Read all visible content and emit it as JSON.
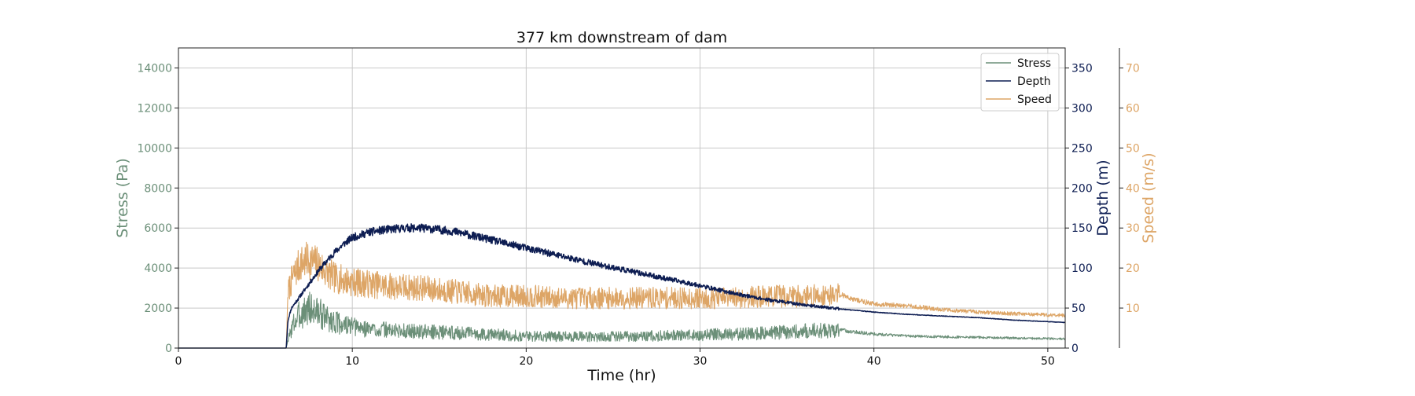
{
  "chart_data": {
    "type": "line",
    "title": "377 km downstream of dam",
    "xlabel": "Time (hr)",
    "xlim": [
      0,
      51
    ],
    "xticks": [
      0,
      10,
      20,
      30,
      40,
      50
    ],
    "grid": true,
    "legend_position": "top-right",
    "colors": {
      "stress": "#6b8f78",
      "depth": "#0d1d52",
      "speed": "#dda566"
    },
    "axes": {
      "stress": {
        "label": "Stress (Pa)",
        "side": "left",
        "ylim": [
          0,
          15000
        ],
        "ticks": [
          0,
          2000,
          4000,
          6000,
          8000,
          10000,
          12000,
          14000
        ]
      },
      "depth": {
        "label": "Depth (m)",
        "side": "right",
        "ylim": [
          0,
          375
        ],
        "ticks": [
          0,
          50,
          100,
          150,
          200,
          250,
          300,
          350
        ]
      },
      "speed": {
        "label": "Speed (m/s)",
        "side": "right-offset",
        "ylim": [
          0,
          75
        ],
        "ticks": [
          10,
          20,
          30,
          40,
          50,
          60,
          70
        ]
      }
    },
    "series": [
      {
        "name": "Stress",
        "axis": "stress",
        "noise": 0.45,
        "x": [
          0,
          6.2,
          6.3,
          6.6,
          7,
          7.5,
          8,
          8.5,
          9,
          10,
          11,
          12,
          13,
          14,
          15,
          16,
          17,
          18,
          19,
          20,
          22,
          24,
          26,
          28,
          30,
          32,
          34,
          35,
          36,
          37,
          38,
          39,
          40,
          42,
          44,
          46,
          48,
          50,
          51
        ],
        "y": [
          0,
          0,
          400,
          1200,
          1700,
          2000,
          1800,
          1500,
          1300,
          1050,
          950,
          900,
          850,
          820,
          800,
          760,
          720,
          680,
          640,
          600,
          580,
          570,
          590,
          620,
          650,
          700,
          760,
          820,
          850,
          880,
          900,
          800,
          700,
          600,
          560,
          540,
          500,
          470,
          460
        ]
      },
      {
        "name": "Depth",
        "axis": "depth",
        "noise": 0.035,
        "x": [
          0,
          6.2,
          6.3,
          6.5,
          7,
          7.5,
          8,
          8.5,
          9,
          9.5,
          10,
          11,
          12,
          13,
          14,
          15,
          16,
          17,
          18,
          19,
          20,
          22,
          24,
          26,
          28,
          30,
          32,
          34,
          36,
          38,
          40,
          42,
          44,
          46,
          48,
          50,
          51
        ],
        "y": [
          0,
          0,
          35,
          50,
          65,
          80,
          95,
          108,
          120,
          130,
          138,
          145,
          148,
          150,
          150,
          148,
          145,
          140,
          135,
          130,
          125,
          115,
          105,
          96,
          87,
          78,
          68,
          60,
          54,
          49,
          45,
          42,
          40,
          38,
          35,
          33,
          32
        ]
      },
      {
        "name": "Speed",
        "axis": "speed",
        "noise": 0.22,
        "x": [
          0,
          6.2,
          6.3,
          6.6,
          7,
          7.5,
          8,
          8.5,
          9,
          10,
          12,
          14,
          16,
          18,
          20,
          22,
          24,
          26,
          28,
          30,
          32,
          34,
          36,
          37,
          38,
          39,
          40,
          42,
          44,
          46,
          48,
          50,
          51
        ],
        "y": [
          0,
          0,
          14,
          18,
          21,
          22,
          21,
          19,
          17.5,
          16.5,
          15.5,
          15,
          14,
          13,
          13,
          12.5,
          12.5,
          12.5,
          12.5,
          12.5,
          12.5,
          13,
          13,
          13.2,
          13.5,
          12,
          11,
          10.5,
          9.6,
          9,
          8.6,
          8.3,
          8.2
        ]
      }
    ]
  }
}
